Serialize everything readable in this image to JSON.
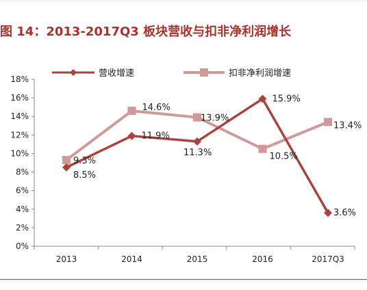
{
  "figure_title": "图 14：2013-2017Q3 板块营收与扣非净利润增长",
  "colors": {
    "title": "#a8322d",
    "revenue": "#a9433f",
    "profit": "#cf9a97",
    "axis": "#888888",
    "rule": "#b34a46"
  },
  "chart_data": {
    "type": "line",
    "title": "图 14：2013-2017Q3 板块营收与扣非净利润增长",
    "categories": [
      "2013",
      "2014",
      "2015",
      "2016",
      "2017Q3"
    ],
    "y_ticks": [
      "0%",
      "2%",
      "4%",
      "6%",
      "8%",
      "10%",
      "12%",
      "14%",
      "16%",
      "18%"
    ],
    "ylim": [
      0,
      18
    ],
    "grid": false,
    "legend_position": "top",
    "series": [
      {
        "name": "营收增速",
        "marker": "diamond",
        "values": [
          8.5,
          11.9,
          11.3,
          15.9,
          3.6
        ],
        "labels": [
          "8.5%",
          "11.9%",
          "11.3%",
          "15.9%",
          "3.6%"
        ]
      },
      {
        "name": "扣非净利润增速",
        "marker": "square",
        "values": [
          9.3,
          14.6,
          13.9,
          10.5,
          13.4
        ],
        "labels": [
          "9.3%",
          "14.6%",
          "13.9%",
          "10.5%",
          "13.4%"
        ]
      }
    ]
  }
}
